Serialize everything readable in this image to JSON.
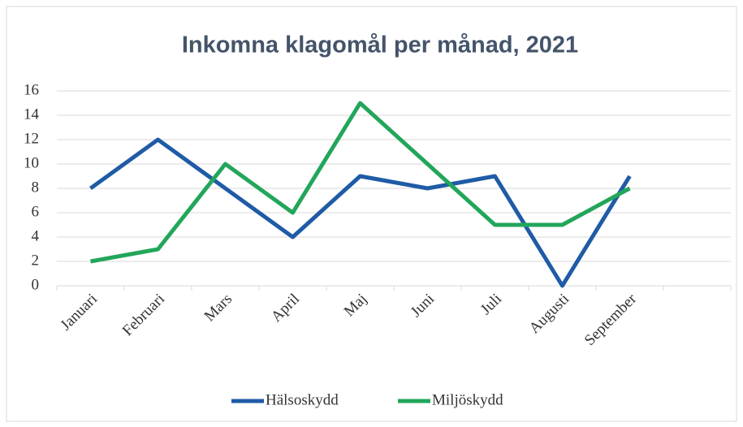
{
  "chart_data": {
    "type": "line",
    "title": "Inkomna klagomål per månad, 2021",
    "categories": [
      "Januari",
      "Februari",
      "Mars",
      "April",
      "Maj",
      "Juni",
      "Juli",
      "Augusti",
      "September",
      null
    ],
    "series": [
      {
        "name": "Hälsoskydd",
        "color": "#1f5ba6",
        "values": [
          8,
          12,
          8,
          4,
          9,
          8,
          9,
          0,
          9,
          null
        ]
      },
      {
        "name": "Miljöskydd",
        "color": "#22a65a",
        "values": [
          2,
          3,
          10,
          6,
          15,
          10,
          5,
          5,
          8,
          null
        ]
      }
    ],
    "ylim": [
      0,
      16
    ],
    "yticks": [
      0,
      2,
      4,
      6,
      8,
      10,
      12,
      14,
      16
    ],
    "grid": true,
    "legend": "bottom"
  }
}
